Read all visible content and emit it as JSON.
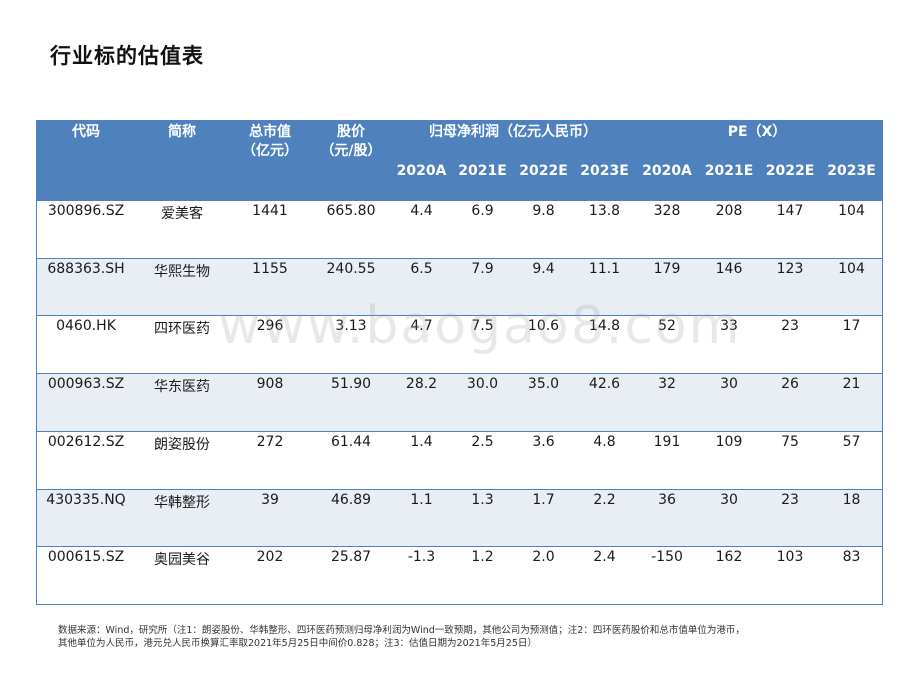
{
  "title": "行业标的估值表",
  "header": {
    "code": "代码",
    "name": "简称",
    "mktcap_line1": "总市值",
    "mktcap_line2": "（亿元）",
    "price_line1": "股价",
    "price_line2": "（元/股）",
    "profit_group": "归母净利润（亿元人民币）",
    "pe_group": "PE（X）",
    "years": [
      "2020A",
      "2021E",
      "2022E",
      "2023E",
      "2020A",
      "2021E",
      "2022E",
      "2023E"
    ]
  },
  "rows": [
    [
      "300896.SZ",
      "爱美客",
      "1441",
      "665.80",
      "4.4",
      "6.9",
      "9.8",
      "13.8",
      "328",
      "208",
      "147",
      "104"
    ],
    [
      "688363.SH",
      "华熙生物",
      "1155",
      "240.55",
      "6.5",
      "7.9",
      "9.4",
      "11.1",
      "179",
      "146",
      "123",
      "104"
    ],
    [
      "0460.HK",
      "四环医药",
      "296",
      "3.13",
      "4.7",
      "7.5",
      "10.6",
      "14.8",
      "52",
      "33",
      "23",
      "17"
    ],
    [
      "000963.SZ",
      "华东医药",
      "908",
      "51.90",
      "28.2",
      "30.0",
      "35.0",
      "42.6",
      "32",
      "30",
      "26",
      "21"
    ],
    [
      "002612.SZ",
      "朗姿股份",
      "272",
      "61.44",
      "1.4",
      "2.5",
      "3.6",
      "4.8",
      "191",
      "109",
      "75",
      "57"
    ],
    [
      "430335.NQ",
      "华韩整形",
      "39",
      "46.89",
      "1.1",
      "1.3",
      "1.7",
      "2.2",
      "36",
      "30",
      "23",
      "18"
    ],
    [
      "000615.SZ",
      "奥园美谷",
      "202",
      "25.87",
      "-1.3",
      "1.2",
      "2.0",
      "2.4",
      "-150",
      "162",
      "103",
      "83"
    ]
  ],
  "watermark": "www.baogao8.com",
  "footnote": {
    "line1": "数据来源：Wind，研究所（注1：朗姿股份、华韩整形、四环医药预测归母净利润为Wind一致预期，其他公司为预测值；注2：四环医药股价和总市值单位为港币，",
    "line2": "其他单位为人民币，港元兑人民币换算汇率取2021年5月25日中间价0.828；注3：估值日期为2021年5月25日）"
  },
  "colors": {
    "header_bg": "#4f81bd",
    "row_alt_bg": "#e9edf4"
  }
}
